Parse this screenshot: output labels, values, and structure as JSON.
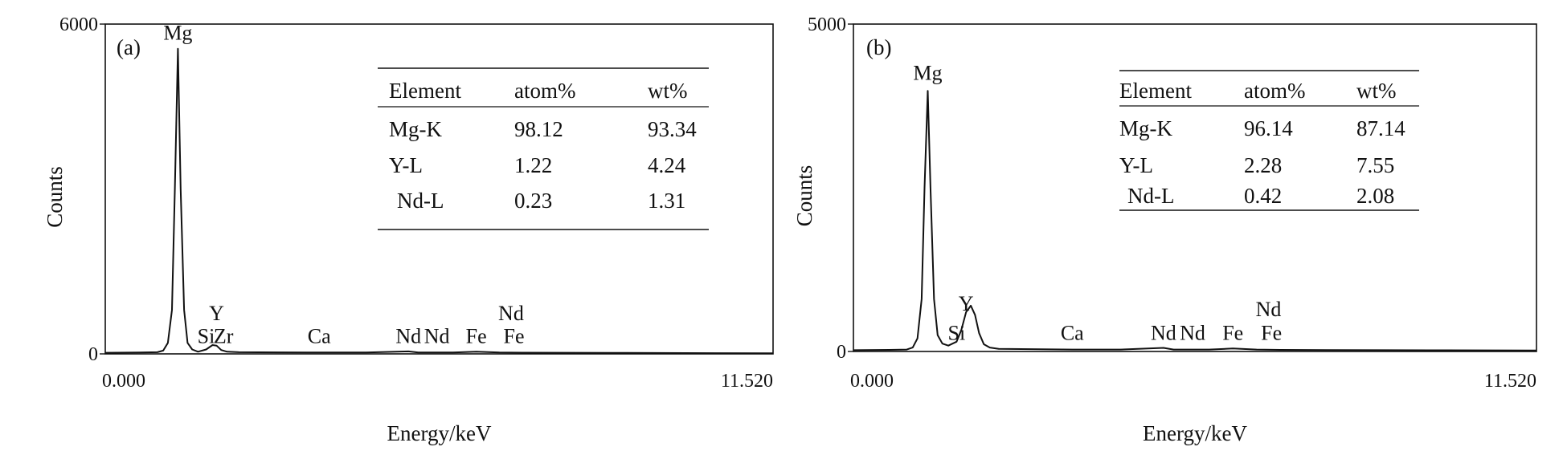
{
  "colors": {
    "ink": "#111111",
    "background": "#ffffff"
  },
  "chart_data": [
    {
      "type": "line",
      "panel_label": "(a)",
      "xlabel": "Energy/keV",
      "ylabel": "Counts",
      "xlim": [
        0,
        11.52
      ],
      "ylim": [
        0,
        6000
      ],
      "x_tick_labels": [
        "0.000",
        "11.520"
      ],
      "y_tick_labels": [
        "0",
        "6000"
      ],
      "grid": false,
      "spectrum": {
        "x": [
          0,
          0.6,
          0.9,
          1.0,
          1.08,
          1.15,
          1.2,
          1.253,
          1.3,
          1.36,
          1.42,
          1.5,
          1.6,
          1.74,
          1.85,
          1.92,
          2.0,
          2.1,
          2.3,
          3.0,
          3.7,
          4.5,
          5.23,
          5.4,
          6.0,
          6.4,
          6.8,
          7.2,
          8.0,
          9.0,
          10.0,
          11.52
        ],
        "y": [
          20,
          25,
          30,
          60,
          200,
          800,
          3000,
          5550,
          3000,
          800,
          200,
          80,
          40,
          80,
          160,
          150,
          70,
          40,
          30,
          28,
          25,
          25,
          45,
          25,
          25,
          40,
          25,
          22,
          20,
          18,
          15,
          12
        ]
      },
      "peak_labels": [
        {
          "text": "Mg",
          "x": 1.253,
          "y": 5600
        },
        {
          "text": "Si",
          "x": 1.74,
          "y": 80
        },
        {
          "text": "Y",
          "x": 1.92,
          "y": 500
        },
        {
          "text": "Zr",
          "x": 2.04,
          "y": 80
        },
        {
          "text": "Ca",
          "x": 3.69,
          "y": 80
        },
        {
          "text": "Nd",
          "x": 5.23,
          "y": 80
        },
        {
          "text": "Nd",
          "x": 5.72,
          "y": 80
        },
        {
          "text": "Fe",
          "x": 6.4,
          "y": 80
        },
        {
          "text": "Nd",
          "x": 7.0,
          "y": 500
        },
        {
          "text": "Fe",
          "x": 7.05,
          "y": 80
        }
      ],
      "table": {
        "headers": [
          "Element",
          "atom%",
          "wt%"
        ],
        "rows": [
          [
            "Mg-K",
            "98.12",
            "93.34"
          ],
          [
            "Y-L",
            "1.22",
            "4.24"
          ],
          [
            "Nd-L",
            "0.23",
            "1.31"
          ]
        ]
      }
    },
    {
      "type": "line",
      "panel_label": "(b)",
      "xlabel": "Energy/keV",
      "ylabel": "Counts",
      "xlim": [
        0,
        11.52
      ],
      "ylim": [
        0,
        5000
      ],
      "x_tick_labels": [
        "0.000",
        "11.520"
      ],
      "y_tick_labels": [
        "0",
        "5000"
      ],
      "grid": false,
      "spectrum": {
        "x": [
          0,
          0.6,
          0.9,
          1.0,
          1.08,
          1.15,
          1.2,
          1.253,
          1.3,
          1.36,
          1.42,
          1.5,
          1.6,
          1.74,
          1.82,
          1.9,
          1.98,
          2.05,
          2.12,
          2.2,
          2.3,
          2.45,
          3.0,
          3.7,
          4.5,
          5.23,
          5.4,
          6.0,
          6.4,
          6.8,
          7.2,
          8.0,
          9.0,
          10.0,
          11.52
        ],
        "y": [
          20,
          25,
          30,
          60,
          200,
          800,
          2500,
          3980,
          2500,
          800,
          250,
          120,
          90,
          150,
          330,
          600,
          700,
          560,
          280,
          110,
          60,
          40,
          35,
          30,
          30,
          55,
          30,
          30,
          45,
          30,
          25,
          22,
          20,
          18,
          15
        ]
      },
      "peak_labels": [
        {
          "text": "Mg",
          "x": 1.253,
          "y": 4050
        },
        {
          "text": "Si",
          "x": 1.74,
          "y": 80
        },
        {
          "text": "Y",
          "x": 1.9,
          "y": 530
        },
        {
          "text": "Ca",
          "x": 3.69,
          "y": 80
        },
        {
          "text": "Nd",
          "x": 5.23,
          "y": 80
        },
        {
          "text": "Nd",
          "x": 5.72,
          "y": 80
        },
        {
          "text": "Fe",
          "x": 6.4,
          "y": 80
        },
        {
          "text": "Nd",
          "x": 7.0,
          "y": 440
        },
        {
          "text": "Fe",
          "x": 7.05,
          "y": 80
        }
      ],
      "table": {
        "headers": [
          "Element",
          "atom%",
          "wt%"
        ],
        "rows": [
          [
            "Mg-K",
            "96.14",
            "87.14"
          ],
          [
            "Y-L",
            "2.28",
            "7.55"
          ],
          [
            "Nd-L",
            "0.42",
            "2.08"
          ]
        ]
      }
    }
  ]
}
